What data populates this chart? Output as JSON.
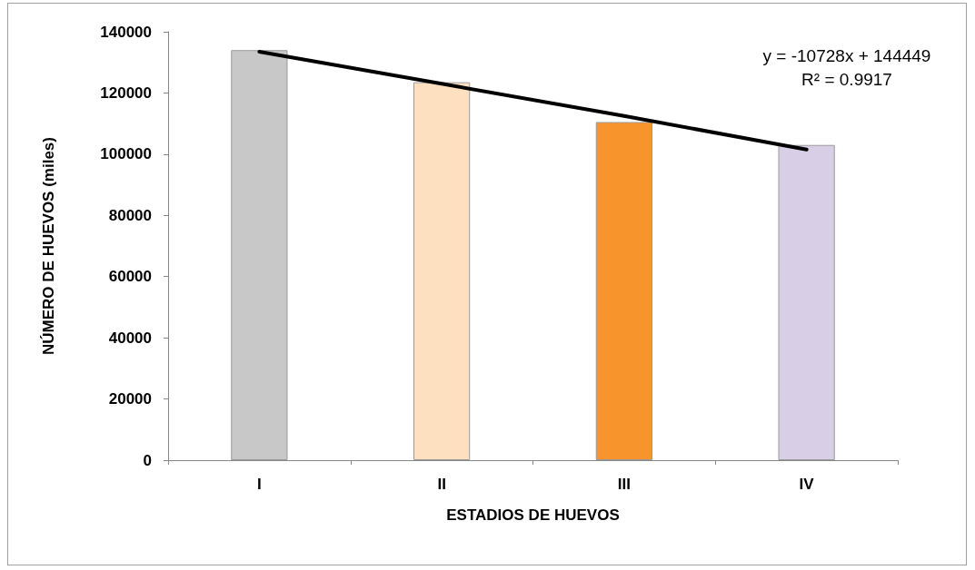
{
  "chart_data": {
    "type": "bar",
    "xlabel": "ESTADIOS DE HUEVOS",
    "ylabel": "NÚMERO DE HUEVOS (miles)",
    "categories": [
      "I",
      "II",
      "III",
      "IV"
    ],
    "series": [
      {
        "values": [
          134000,
          123500,
          110500,
          103000
        ],
        "colors": [
          "#c8c8c8",
          "#fde0c0",
          "#f7952c",
          "#d8cfe6"
        ]
      },
      {
        "type": "line",
        "color": "#000000",
        "marker": "none",
        "values": [
          133500,
          123000,
          112500,
          101500
        ]
      }
    ],
    "annotations": [
      "y = -10728x + 144449",
      "R² = 0.9917"
    ],
    "ylim": [
      0,
      140000
    ],
    "yticks": [
      0,
      20000,
      40000,
      60000,
      80000,
      100000,
      120000,
      140000
    ],
    "grid": false
  }
}
